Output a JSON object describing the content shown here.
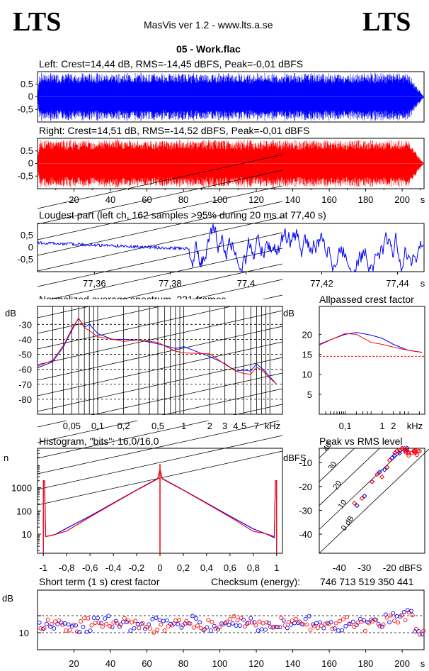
{
  "header": {
    "logo_left": "LTS",
    "logo_right": "LTS",
    "app_title": "MasVis ver 1.2 - www.lts.a.se",
    "file_name": "05 - Work.flac"
  },
  "panels": {
    "left_title": "Left: Crest=14,44 dB, RMS=-14,45 dBFS, Peak=-0,01 dBFS",
    "right_title": "Right: Crest=14,51 dB, RMS=-14,52 dBFS, Peak=-0,01 dBFS",
    "loudest_title": "Loudest part (left  ch, 162 samples >95% during 20 ms at 77,40 s)",
    "spectrum_title": "Normalized average spectrum, 221 frames",
    "allpass_title": "Allpassed crest factor",
    "histogram_title": "Histogram, \"bits\": 16,0/16,0",
    "pvr_title": "Peak vs RMS level",
    "shortterm_title": "Short term (1 s) crest factor",
    "checksum_label": "Checksum (energy):",
    "checksum_value": "746 713 519 350 441"
  },
  "colors": {
    "left": "#0000ff",
    "right": "#ff0000",
    "axis": "#000000",
    "grid": "#000000"
  },
  "chart_data": [
    {
      "type": "area",
      "name": "left-waveform",
      "title": "Left: Crest=14,44 dB, RMS=-14,45 dBFS, Peak=-0,01 dBFS",
      "ytick_labels": [
        "0.5",
        "0",
        "-0,5"
      ],
      "ylim": [
        -1,
        1
      ],
      "duration_s": 212,
      "fade_out_start_s": 203
    },
    {
      "type": "area",
      "name": "right-waveform",
      "title": "Right: Crest=14,51 dB, RMS=-14,52 dBFS, Peak=-0,01 dBFS",
      "ytick_labels": [
        "0.5",
        "0",
        "-0,5"
      ],
      "ylim": [
        -1,
        1
      ],
      "xtick_labels": [
        "20",
        "40",
        "60",
        "80",
        "100",
        "120",
        "140",
        "160",
        "180",
        "200",
        "s"
      ],
      "xlim": [
        0,
        212
      ]
    },
    {
      "type": "line",
      "name": "loudest-part",
      "title": "Loudest part (left  ch, 162 samples >95% during 20 ms at 77,40 s)",
      "ytick_labels": [
        "0,5",
        "0",
        "-0,5"
      ],
      "ylim": [
        -1,
        1
      ],
      "xtick_labels": [
        "77,36",
        "77,38",
        "77,4",
        "77,42",
        "77,44",
        "s"
      ],
      "xlim": [
        77.345,
        77.447
      ]
    },
    {
      "type": "line",
      "name": "spectrum",
      "title": "Normalized average spectrum, 221 frames",
      "ylabel": "dB",
      "ytick_labels": [
        "-30",
        "-40",
        "-50",
        "-60",
        "-70",
        "-80"
      ],
      "ylim": [
        -90,
        -18
      ],
      "xtick_labels": [
        "0,05",
        "0,1",
        "0,2",
        "0,5",
        "1",
        "2",
        "3",
        "4",
        "5",
        "7",
        "kHz"
      ],
      "x_scale": "log",
      "series": [
        {
          "name": "left",
          "x": [
            0.02,
            0.03,
            0.04,
            0.05,
            0.06,
            0.07,
            0.08,
            0.1,
            0.15,
            0.2,
            0.3,
            0.5,
            0.8,
            1,
            2,
            3,
            4,
            5,
            6,
            7,
            8,
            10,
            12
          ],
          "values": [
            -59,
            -55,
            -45,
            -34,
            -28,
            -30,
            -32,
            -36,
            -39,
            -38,
            -41,
            -43,
            -46,
            -46,
            -50,
            -56,
            -60,
            -62,
            -61,
            -57,
            -60,
            -65,
            -70
          ]
        },
        {
          "name": "right",
          "x": [
            0.02,
            0.03,
            0.04,
            0.05,
            0.06,
            0.07,
            0.08,
            0.1,
            0.15,
            0.2,
            0.3,
            0.5,
            0.8,
            1,
            2,
            3,
            4,
            5,
            6,
            7,
            8,
            10,
            12
          ],
          "values": [
            -58,
            -54,
            -44,
            -33,
            -28,
            -31,
            -33,
            -37,
            -40,
            -39,
            -42,
            -44,
            -47,
            -47,
            -51,
            -57,
            -61,
            -63,
            -62,
            -58,
            -61,
            -66,
            -70
          ]
        }
      ]
    },
    {
      "type": "line",
      "name": "allpassed-crest",
      "title": "Allpassed crest factor",
      "ylabel": "dB",
      "ytick_labels": [
        "20",
        "15",
        "10",
        "5"
      ],
      "ylim": [
        0,
        27
      ],
      "xtick_labels": [
        "0,1",
        "1",
        "2",
        "kHz"
      ],
      "x_scale": "log",
      "reference_level_db": 14.5,
      "series": [
        {
          "name": "left",
          "x": [
            0.02,
            0.05,
            0.1,
            0.2,
            0.5,
            1,
            2,
            5,
            12
          ],
          "values": [
            17.5,
            19,
            20,
            20.5,
            19.8,
            19,
            17.5,
            16,
            15.5
          ]
        },
        {
          "name": "right",
          "x": [
            0.02,
            0.05,
            0.1,
            0.2,
            0.5,
            1,
            2,
            5,
            12
          ],
          "values": [
            17.3,
            19,
            20.2,
            20,
            18,
            17.5,
            16.8,
            16,
            15.5
          ]
        }
      ]
    },
    {
      "type": "line",
      "name": "histogram",
      "title": "Histogram, \"bits\": 16,0/16,0",
      "ylabel": "n",
      "y_scale": "log",
      "ytick_labels": [
        "1000",
        "100",
        "10"
      ],
      "ylim": [
        1.5,
        50000
      ],
      "xtick_labels": [
        "-1",
        "-0,8",
        "-0,6",
        "-0,4",
        "-0,2",
        "0",
        "0,2",
        "0,4",
        "0,6",
        "0,8",
        "1"
      ],
      "xlim": [
        -1.05,
        1.05
      ],
      "series": [
        {
          "name": "left",
          "x": [
            -0.98,
            -0.9,
            -0.8,
            -0.6,
            -0.4,
            -0.2,
            -0.1,
            -0.02,
            0,
            0.02,
            0.1,
            0.2,
            0.4,
            0.6,
            0.8,
            0.9,
            0.98
          ],
          "values": [
            7,
            11,
            18,
            60,
            220,
            800,
            1500,
            2500,
            6000,
            2500,
            1500,
            800,
            220,
            60,
            18,
            11,
            7
          ]
        },
        {
          "name": "right",
          "x": [
            -0.98,
            -0.9,
            -0.8,
            -0.6,
            -0.4,
            -0.2,
            -0.1,
            -0.02,
            0,
            0.02,
            0.1,
            0.2,
            0.4,
            0.6,
            0.8,
            0.9,
            0.98
          ],
          "values": [
            7,
            10,
            17,
            55,
            210,
            780,
            1450,
            2400,
            6000,
            2400,
            1450,
            780,
            210,
            55,
            17,
            10,
            7
          ]
        }
      ],
      "spike_value": 2000
    },
    {
      "type": "scatter",
      "name": "peak-vs-rms",
      "title": "Peak vs RMS level",
      "ylabel": "dBFS",
      "xlabel": "dBFS",
      "ytick_labels": [
        "-10",
        "-20",
        "-30",
        "-40"
      ],
      "xtick_labels": [
        "-40",
        "-30",
        "-20",
        "dBFS"
      ],
      "xlim": [
        -48,
        -6
      ],
      "ylim": [
        -48,
        -4
      ],
      "diagonal_labels": [
        "40",
        "30",
        "20",
        "10",
        "0 dB"
      ],
      "series": [
        {
          "name": "left",
          "x": [
            -33,
            -30,
            -27,
            -24,
            -22,
            -21,
            -19,
            -18,
            -17,
            -16,
            -15,
            -14,
            -13
          ],
          "values": [
            -28,
            -24,
            -18,
            -14,
            -13,
            -12,
            -8,
            -7,
            -5,
            -6,
            -4,
            -5,
            -4
          ]
        },
        {
          "name": "right",
          "x": [
            -34,
            -31,
            -27,
            -25,
            -23,
            -21,
            -20,
            -18,
            -17,
            -16,
            -15,
            -14,
            -13
          ],
          "values": [
            -27,
            -25,
            -18,
            -15,
            -16,
            -12,
            -9,
            -6,
            -5,
            -5,
            -4,
            -4,
            -5
          ]
        }
      ]
    },
    {
      "type": "scatter",
      "name": "short-term-crest",
      "title": "Short term (1 s) crest factor",
      "ylabel": "dB",
      "ytick_labels": [
        "10"
      ],
      "ylim": [
        6,
        20
      ],
      "xtick_labels": [
        "20",
        "40",
        "60",
        "80",
        "100",
        "120",
        "140",
        "160",
        "180",
        "200",
        "s"
      ],
      "xlim": [
        0,
        212
      ],
      "series": [
        {
          "name": "left",
          "x": [
            2,
            10,
            20,
            30,
            40,
            50,
            60,
            70,
            80,
            90,
            100,
            110,
            120,
            130,
            140,
            150,
            160,
            170,
            180,
            190,
            200,
            205,
            210
          ],
          "values": [
            12,
            11.5,
            12.5,
            11,
            13,
            12,
            11.5,
            12.5,
            12,
            13,
            11,
            12,
            12.5,
            11.5,
            12,
            13,
            12,
            11.5,
            12.5,
            12,
            13.5,
            14.5,
            10
          ]
        },
        {
          "name": "right",
          "x": [
            3,
            11,
            21,
            31,
            41,
            51,
            61,
            71,
            81,
            91,
            101,
            111,
            121,
            131,
            141,
            151,
            161,
            171,
            181,
            191,
            201,
            206,
            210
          ],
          "values": [
            11.5,
            12,
            11,
            12.5,
            11.5,
            12.5,
            12,
            11,
            12.5,
            11.5,
            12,
            13,
            11.5,
            12,
            12.5,
            11.5,
            12,
            13,
            11.5,
            12.5,
            13,
            14,
            10
          ]
        }
      ],
      "guide_levels": [
        14,
        10
      ]
    }
  ]
}
